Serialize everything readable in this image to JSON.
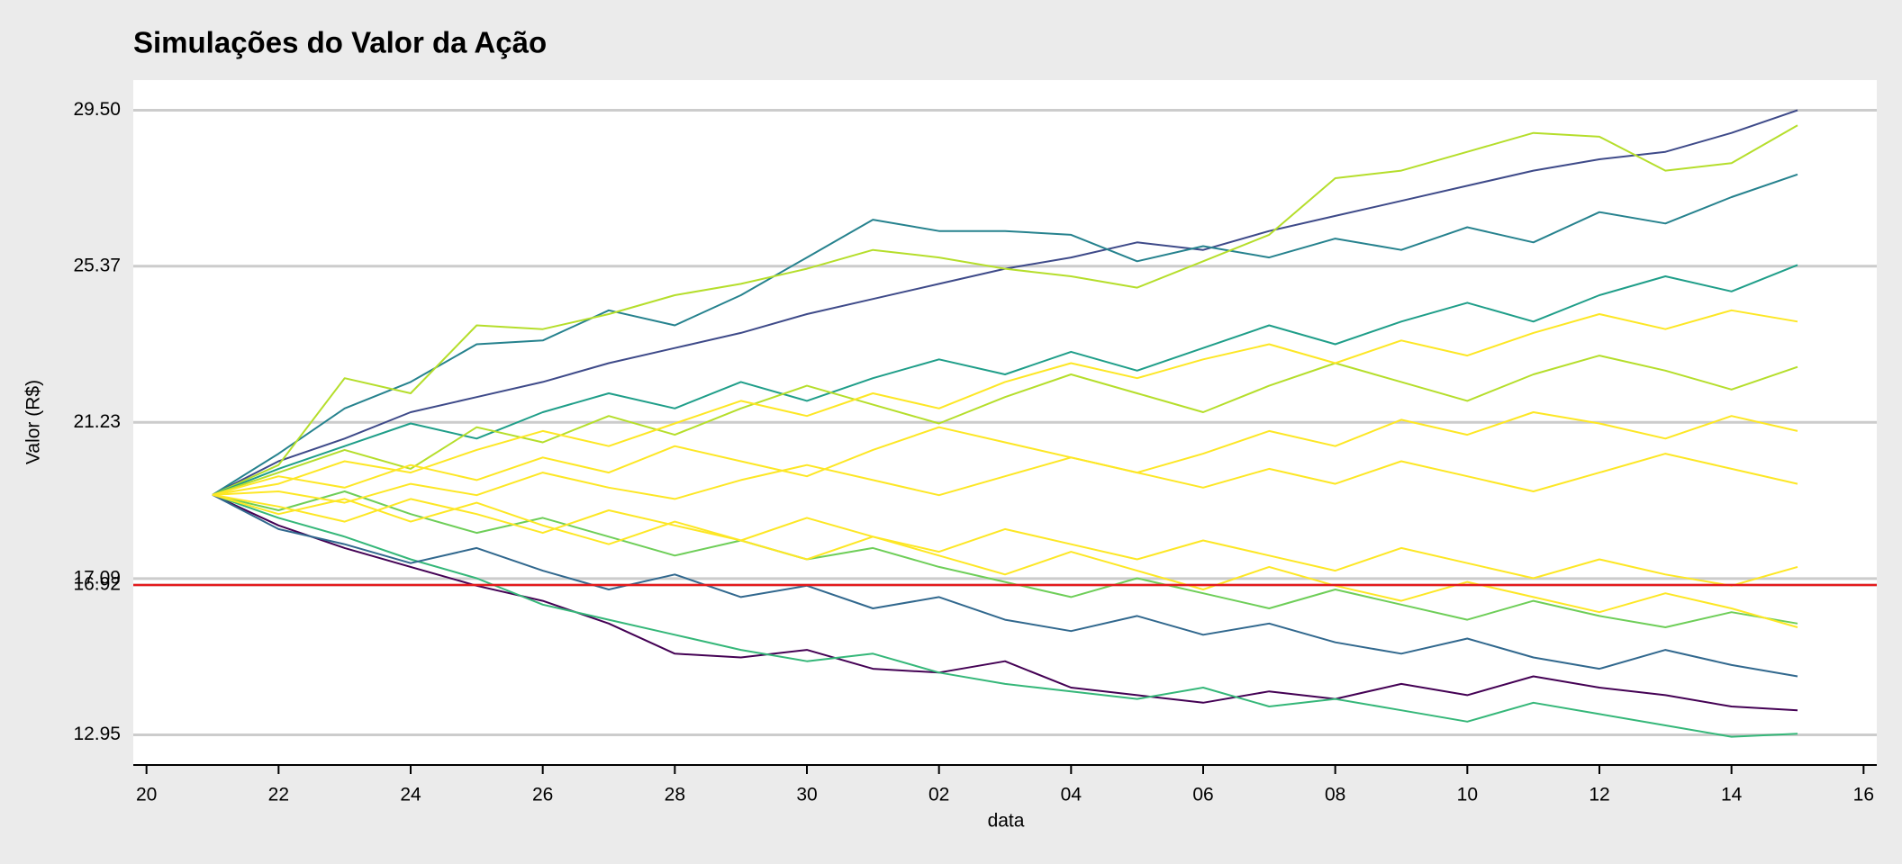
{
  "chart_data": {
    "type": "line",
    "title": "Simulações do Valor da Ação",
    "x_label": "data",
    "y_label": "Valor (R$)",
    "x": [
      "21",
      "22",
      "23",
      "24",
      "25",
      "26",
      "27",
      "28",
      "29",
      "30",
      "01",
      "02",
      "03",
      "04",
      "05",
      "06",
      "07",
      "08",
      "09",
      "10",
      "11",
      "12",
      "13",
      "14",
      "15"
    ],
    "xticks": [
      "20",
      "22",
      "24",
      "26",
      "28",
      "30",
      "02",
      "04",
      "06",
      "08",
      "10",
      "12",
      "14",
      "16"
    ],
    "ylim": [
      12.15,
      30.3
    ],
    "yticks": [
      12.95,
      16.92,
      17.09,
      21.23,
      25.37,
      {
        "value": 29.5,
        "label": "29.50"
      }
    ],
    "grid": true,
    "hline": 16.92,
    "hline_color": "#e41a1c",
    "series": [
      {
        "color": "#3e4a89",
        "values": [
          19.31,
          20.2,
          20.8,
          21.5,
          21.9,
          22.3,
          22.8,
          23.2,
          23.6,
          24.1,
          24.5,
          24.9,
          25.3,
          25.6,
          26.0,
          25.8,
          26.3,
          26.7,
          27.1,
          27.5,
          27.9,
          28.2,
          28.4,
          28.9,
          29.5
        ]
      },
      {
        "color": "#26828e",
        "values": [
          19.31,
          20.4,
          21.6,
          22.3,
          23.3,
          23.4,
          24.2,
          23.8,
          24.6,
          25.6,
          26.6,
          26.3,
          26.3,
          26.2,
          25.5,
          25.9,
          25.6,
          26.1,
          25.8,
          26.4,
          26.0,
          26.8,
          26.5,
          27.2,
          27.8
        ]
      },
      {
        "color": "#b5de2b",
        "values": [
          19.31,
          20.1,
          22.4,
          22.0,
          23.8,
          23.7,
          24.1,
          24.6,
          24.9,
          25.3,
          25.8,
          25.6,
          25.3,
          25.1,
          24.8,
          25.5,
          26.2,
          27.7,
          27.9,
          28.4,
          28.9,
          28.8,
          27.9,
          28.1,
          29.1
        ]
      },
      {
        "color": "#440154",
        "values": [
          19.31,
          18.5,
          17.9,
          17.4,
          16.9,
          16.5,
          15.9,
          15.1,
          15.0,
          15.2,
          14.7,
          14.6,
          14.9,
          14.2,
          14.0,
          13.8,
          14.1,
          13.9,
          14.3,
          14.0,
          14.5,
          14.2,
          14.0,
          13.7,
          13.6
        ]
      },
      {
        "color": "#35b779",
        "values": [
          19.31,
          18.7,
          18.2,
          17.6,
          17.1,
          16.4,
          16.0,
          15.6,
          15.2,
          14.9,
          15.1,
          14.6,
          14.3,
          14.1,
          13.9,
          14.2,
          13.7,
          13.9,
          13.6,
          13.3,
          13.8,
          13.5,
          13.2,
          12.9,
          12.98
        ]
      },
      {
        "color": "#1f9e89",
        "values": [
          19.31,
          20.0,
          20.6,
          21.2,
          20.8,
          21.5,
          22.0,
          21.6,
          22.3,
          21.8,
          22.4,
          22.9,
          22.5,
          23.1,
          22.6,
          23.2,
          23.8,
          23.3,
          23.9,
          24.4,
          23.9,
          24.6,
          25.1,
          24.7,
          25.4
        ]
      },
      {
        "color": "#31688e",
        "values": [
          19.31,
          18.4,
          18.0,
          17.5,
          17.9,
          17.3,
          16.8,
          17.2,
          16.6,
          16.9,
          16.3,
          16.6,
          16.0,
          15.7,
          16.1,
          15.6,
          15.9,
          15.4,
          15.1,
          15.5,
          15.0,
          14.7,
          15.2,
          14.8,
          14.5
        ]
      },
      {
        "color": "#6ece58",
        "values": [
          19.31,
          18.9,
          19.4,
          18.8,
          18.3,
          18.7,
          18.2,
          17.7,
          18.1,
          17.6,
          17.9,
          17.4,
          17.0,
          16.6,
          17.1,
          16.7,
          16.3,
          16.8,
          16.4,
          16.0,
          16.5,
          16.1,
          15.8,
          16.2,
          15.9
        ]
      },
      {
        "color": "#b5de2b",
        "values": [
          19.31,
          19.9,
          20.5,
          20.0,
          21.1,
          20.7,
          21.4,
          20.9,
          21.6,
          22.2,
          21.7,
          21.2,
          21.9,
          22.5,
          22.0,
          21.5,
          22.2,
          22.8,
          22.3,
          21.8,
          22.5,
          23.0,
          22.6,
          22.1,
          22.7
        ]
      },
      {
        "color": "#fde725",
        "values": [
          19.31,
          19.8,
          19.5,
          20.1,
          19.7,
          20.3,
          19.9,
          20.6,
          20.2,
          19.8,
          20.5,
          21.1,
          20.7,
          20.3,
          19.9,
          20.4,
          21.0,
          20.6,
          21.3,
          20.9,
          21.5,
          21.2,
          20.8,
          21.4,
          21.0
        ]
      },
      {
        "color": "#fde725",
        "values": [
          19.31,
          19.0,
          18.6,
          19.2,
          18.8,
          18.3,
          18.9,
          18.5,
          18.1,
          18.7,
          18.2,
          17.8,
          18.4,
          18.0,
          17.6,
          18.1,
          17.7,
          17.3,
          17.9,
          17.5,
          17.1,
          17.6,
          17.2,
          16.9,
          17.4
        ]
      },
      {
        "color": "#fde725",
        "values": [
          19.31,
          19.6,
          20.2,
          19.9,
          20.5,
          21.0,
          20.6,
          21.2,
          21.8,
          21.4,
          22.0,
          21.6,
          22.3,
          22.8,
          22.4,
          22.9,
          23.3,
          22.8,
          23.4,
          23.0,
          23.6,
          24.1,
          23.7,
          24.2,
          23.9
        ]
      },
      {
        "color": "#fde725",
        "values": [
          19.31,
          19.4,
          19.1,
          19.6,
          19.3,
          19.9,
          19.5,
          19.2,
          19.7,
          20.1,
          19.7,
          19.3,
          19.8,
          20.3,
          19.9,
          19.5,
          20.0,
          19.6,
          20.2,
          19.8,
          19.4,
          19.9,
          20.4,
          20.0,
          19.6
        ]
      },
      {
        "color": "#fde725",
        "values": [
          19.31,
          18.8,
          19.2,
          18.6,
          19.1,
          18.5,
          18.0,
          18.6,
          18.1,
          17.6,
          18.2,
          17.7,
          17.2,
          17.8,
          17.3,
          16.8,
          17.4,
          16.9,
          16.5,
          17.0,
          16.6,
          16.2,
          16.7,
          16.3,
          15.8
        ]
      }
    ]
  }
}
